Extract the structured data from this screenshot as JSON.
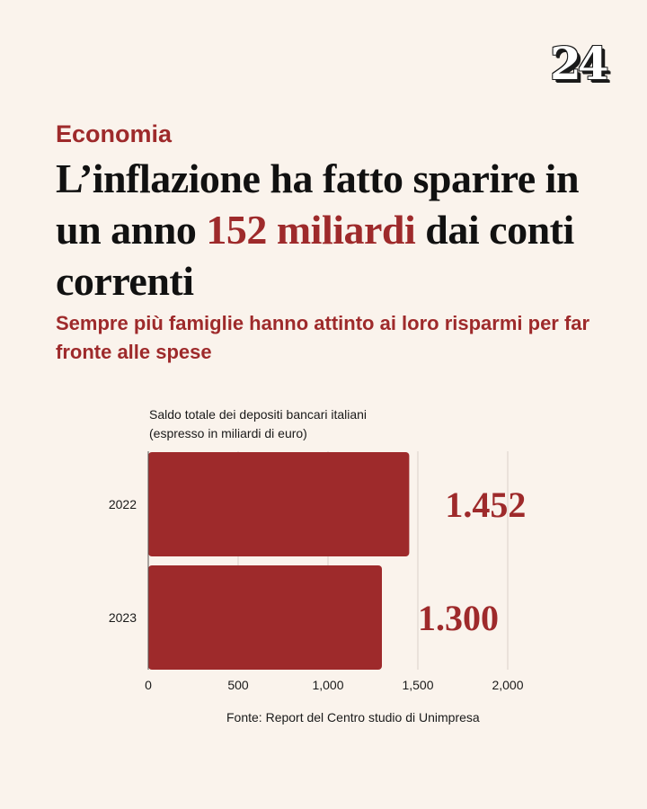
{
  "logo": "24",
  "kicker": "Economia",
  "headline": {
    "before": "L’inflazione ha fatto sparire in un anno ",
    "highlight": "152 miliardi",
    "after": " dai conti correnti"
  },
  "subhead": "Sempre più famiglie hanno attinto ai loro risparmi per far fronte alle spese",
  "source": "Fonte: Report del Centro studio di Unimpresa",
  "colors": {
    "accent": "#9e2a2b",
    "bar": "#9e2a2b",
    "background": "#faf3ec",
    "text": "#111111"
  },
  "chart_data": {
    "type": "bar",
    "orientation": "horizontal",
    "title": "Saldo totale dei depositi bancari italiani",
    "subtitle": "(espresso in miliardi di euro)",
    "categories": [
      "2022",
      "2023"
    ],
    "values": [
      1452,
      1300
    ],
    "data_labels": [
      "1.452",
      "1.300"
    ],
    "x_ticks": [
      "0",
      "500",
      "1,000",
      "1,500",
      "2,000"
    ],
    "x_tick_values": [
      0,
      500,
      1000,
      1500,
      2000
    ],
    "xlim": [
      0,
      2000
    ],
    "grid": true
  }
}
